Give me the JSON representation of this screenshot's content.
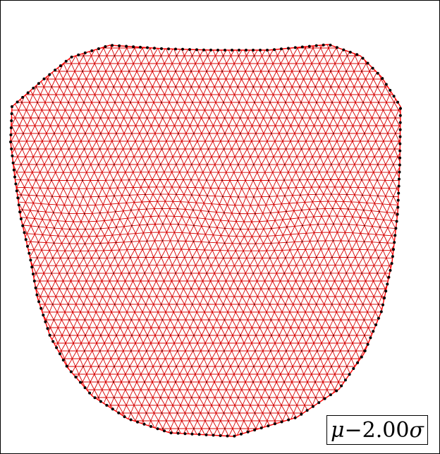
{
  "figure": {
    "label": {
      "mu": "μ",
      "operator": "−",
      "value": "2.00",
      "sigma": "σ"
    },
    "colors": {
      "edge": "#ff0000",
      "vertex": "#000000",
      "background": "#ffffff",
      "border": "#000000"
    }
  }
}
